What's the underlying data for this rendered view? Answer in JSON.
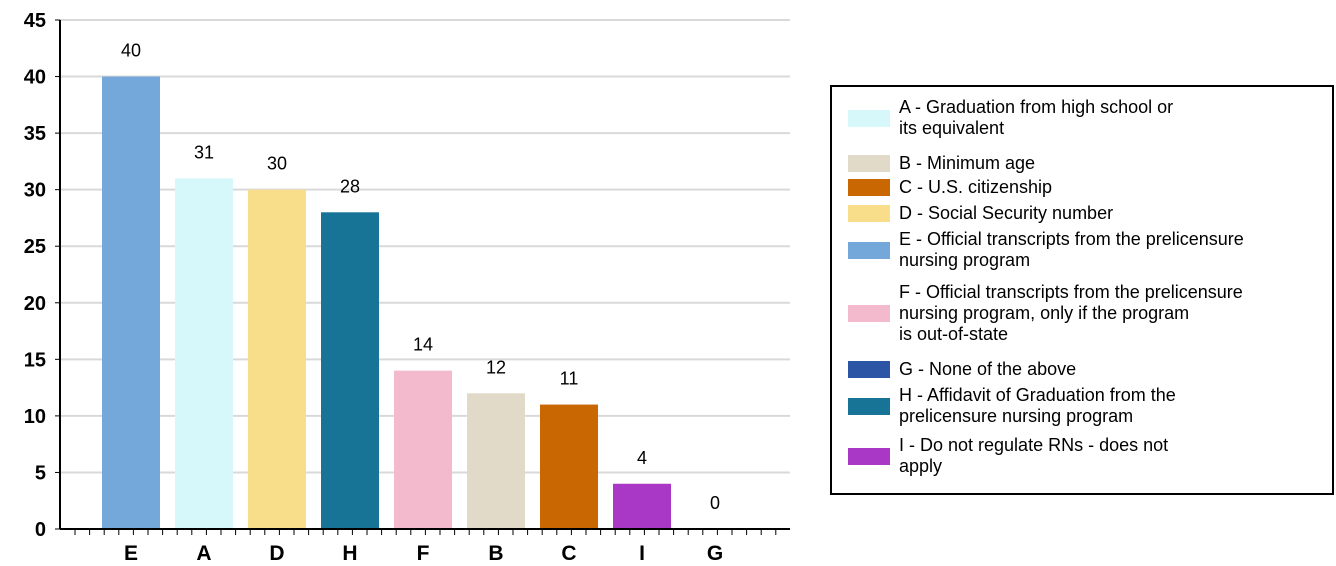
{
  "chart_data": {
    "type": "bar",
    "categories": [
      "E",
      "A",
      "D",
      "H",
      "F",
      "B",
      "C",
      "I",
      "G"
    ],
    "values": [
      40,
      31,
      30,
      28,
      14,
      12,
      11,
      4,
      0
    ],
    "ylim": [
      0,
      45
    ],
    "yticks": [
      "0",
      "5",
      "10",
      "15",
      "20",
      "25",
      "30",
      "35",
      "40",
      "45"
    ],
    "grid": true,
    "colors": [
      "#74a7da",
      "#d7f8fb",
      "#f8de8b",
      "#177497",
      "#f3bace",
      "#e2dac9",
      "#c96702",
      "#aa38c6",
      "#2d55a6"
    ],
    "legend_position": "right",
    "legend": [
      {
        "label": "A - Graduation from high school or\nits equivalent",
        "color": "#d7f8fb"
      },
      {
        "label": "B - Minimum age",
        "color": "#e2dac9"
      },
      {
        "label": "C - U.S. citizenship",
        "color": "#c96702"
      },
      {
        "label": "D - Social Security number",
        "color": "#f8de8b"
      },
      {
        "label": "E - Official transcripts from the prelicensure\nnursing program",
        "color": "#74a7da"
      },
      {
        "label": "F - Official transcripts from the prelicensure\nnursing program, only if the program\nis out-of-state",
        "color": "#f3bace"
      },
      {
        "label": "G - None of the above",
        "color": "#2d55a6"
      },
      {
        "label": "H - Affidavit of Graduation from the\nprelicensure nursing program",
        "color": "#177497"
      },
      {
        "label": "I - Do not regulate RNs - does not\napply",
        "color": "#aa38c6"
      }
    ]
  }
}
